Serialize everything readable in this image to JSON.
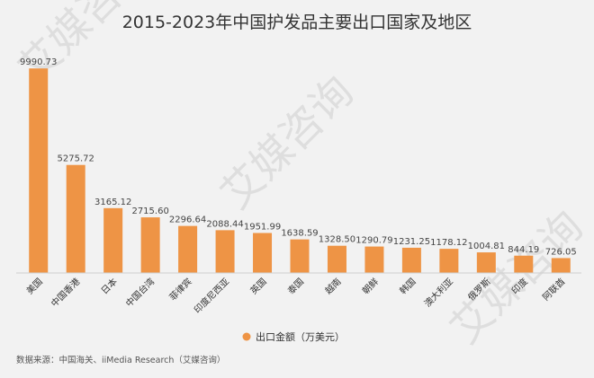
{
  "watermark": "艾媒咨询",
  "chart_data": {
    "type": "bar",
    "title": "2015-2023年中国护发品主要出口国家及地区",
    "categories": [
      "美国",
      "中国香港",
      "日本",
      "中国台湾",
      "菲律宾",
      "印度尼西亚",
      "英国",
      "泰国",
      "越南",
      "朝鲜",
      "韩国",
      "澳大利亚",
      "俄罗斯",
      "印度",
      "阿联酋"
    ],
    "series": [
      {
        "name": "出口金额（万美元）",
        "values": [
          9990.73,
          5275.72,
          3165.12,
          2715.6,
          2296.64,
          2088.44,
          1951.99,
          1638.59,
          1328.5,
          1290.79,
          1231.25,
          1178.12,
          1004.81,
          844.19,
          726.05
        ]
      }
    ],
    "value_labels": [
      "9990.73",
      "5275.72",
      "3165.12",
      "2715.60",
      "2296.64",
      "2088.44",
      "1951.99",
      "1638.59",
      "1328.50",
      "1290.79",
      "1231.25",
      "1178.12",
      "1004.81",
      "844.19",
      "726.05"
    ],
    "ylim": [
      0,
      10000
    ],
    "grid": false,
    "legend_position": "bottom-center",
    "bar_color": "#ee9445",
    "source": "数据来源：中国海关、iiMedia Research（艾媒咨询）"
  }
}
